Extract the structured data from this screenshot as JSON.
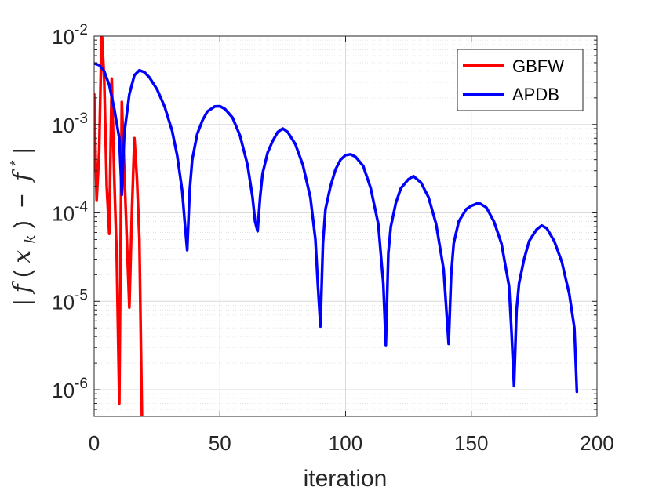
{
  "chart_data": {
    "type": "line",
    "xlabel": "iteration",
    "ylabel": "|f(x_k) − f*|",
    "ylabel_parts": [
      "|",
      "f",
      "(",
      "x",
      "k",
      ")",
      "−",
      "f",
      "*",
      "|"
    ],
    "xlim": [
      0,
      200
    ],
    "ylim": [
      5e-07,
      0.01
    ],
    "yscale": "log",
    "grid": true,
    "legend_position": "top-right",
    "x_ticks": [
      {
        "value": 0,
        "label": "0"
      },
      {
        "value": 50,
        "label": "50"
      },
      {
        "value": 100,
        "label": "100"
      },
      {
        "value": 150,
        "label": "150"
      },
      {
        "value": 200,
        "label": "200"
      }
    ],
    "y_ticks": [
      {
        "value": 1e-06,
        "base": "10",
        "exp": "-6"
      },
      {
        "value": 1e-05,
        "base": "10",
        "exp": "-5"
      },
      {
        "value": 0.0001,
        "base": "10",
        "exp": "-4"
      },
      {
        "value": 0.001,
        "base": "10",
        "exp": "-3"
      },
      {
        "value": 0.01,
        "base": "10",
        "exp": "-2"
      }
    ],
    "series": [
      {
        "name": "GBFW",
        "color": "#ff0000",
        "points": [
          [
            0,
            0.0022
          ],
          [
            1,
            0.00014
          ],
          [
            2,
            0.0005
          ],
          [
            3,
            0.0115
          ],
          [
            4,
            0.0032
          ],
          [
            5,
            0.0002
          ],
          [
            6,
            5.8e-05
          ],
          [
            7,
            0.0033
          ],
          [
            8,
            0.00025
          ],
          [
            9,
            3e-05
          ],
          [
            10,
            7e-07
          ],
          [
            11,
            0.0018
          ],
          [
            12,
            0.0003
          ],
          [
            13,
            5e-05
          ],
          [
            14,
            8.5e-06
          ],
          [
            15,
            0.0001
          ],
          [
            16,
            0.0007
          ],
          [
            17,
            0.00025
          ],
          [
            18,
            5e-05
          ],
          [
            19,
            5e-07
          ]
        ]
      },
      {
        "name": "APDB",
        "color": "#0000ff",
        "points": [
          [
            0,
            0.0049
          ],
          [
            2,
            0.0047
          ],
          [
            4,
            0.004
          ],
          [
            6,
            0.0028
          ],
          [
            8,
            0.0015
          ],
          [
            10,
            0.0007
          ],
          [
            11,
            0.00016
          ],
          [
            12,
            0.0008
          ],
          [
            14,
            0.0022
          ],
          [
            16,
            0.0036
          ],
          [
            18,
            0.0041
          ],
          [
            20,
            0.0039
          ],
          [
            22,
            0.0034
          ],
          [
            25,
            0.0025
          ],
          [
            28,
            0.0016
          ],
          [
            31,
            0.00085
          ],
          [
            33,
            0.00045
          ],
          [
            35,
            0.00018
          ],
          [
            36,
            8e-05
          ],
          [
            37,
            3.8e-05
          ],
          [
            38,
            0.00018
          ],
          [
            39,
            0.0004
          ],
          [
            41,
            0.00078
          ],
          [
            43,
            0.0011
          ],
          [
            45,
            0.0014
          ],
          [
            48,
            0.0016
          ],
          [
            50,
            0.00161
          ],
          [
            52,
            0.0015
          ],
          [
            55,
            0.0012
          ],
          [
            58,
            0.00075
          ],
          [
            61,
            0.00035
          ],
          [
            63,
            0.00015
          ],
          [
            64,
            8e-05
          ],
          [
            65,
            6.2e-05
          ],
          [
            66,
            0.00015
          ],
          [
            67,
            0.00028
          ],
          [
            69,
            0.00048
          ],
          [
            71,
            0.00065
          ],
          [
            73,
            0.00082
          ],
          [
            75,
            0.0009
          ],
          [
            77,
            0.00082
          ],
          [
            80,
            0.0006
          ],
          [
            83,
            0.00035
          ],
          [
            86,
            0.00015
          ],
          [
            88,
            5e-05
          ],
          [
            89,
            1.5e-05
          ],
          [
            90,
            5.2e-06
          ],
          [
            91,
            4.5e-05
          ],
          [
            92,
            0.00011
          ],
          [
            94,
            0.0002
          ],
          [
            96,
            0.00031
          ],
          [
            98,
            0.0004
          ],
          [
            100,
            0.00045
          ],
          [
            102,
            0.00046
          ],
          [
            104,
            0.00043
          ],
          [
            107,
            0.00034
          ],
          [
            110,
            0.00019
          ],
          [
            113,
            7.5e-05
          ],
          [
            115,
            1.6e-05
          ],
          [
            116,
            3.2e-06
          ],
          [
            117,
            3.5e-05
          ],
          [
            118,
            7e-05
          ],
          [
            120,
            0.00013
          ],
          [
            122,
            0.00019
          ],
          [
            125,
            0.00024
          ],
          [
            127,
            0.00026
          ],
          [
            130,
            0.00022
          ],
          [
            133,
            0.00015
          ],
          [
            136,
            7.5e-05
          ],
          [
            139,
            2.3e-05
          ],
          [
            141,
            3.3e-06
          ],
          [
            142,
            2e-05
          ],
          [
            143,
            4.5e-05
          ],
          [
            145,
            8e-05
          ],
          [
            148,
            0.00011
          ],
          [
            150,
            0.00012
          ],
          [
            153,
            0.00013
          ],
          [
            156,
            0.000115
          ],
          [
            159,
            8e-05
          ],
          [
            162,
            4.5e-05
          ],
          [
            165,
            1.5e-05
          ],
          [
            166,
            4.5e-06
          ],
          [
            167,
            1.1e-06
          ],
          [
            168,
            8e-06
          ],
          [
            169,
            1.6e-05
          ],
          [
            171,
            3e-05
          ],
          [
            173,
            4.8e-05
          ],
          [
            176,
            6.5e-05
          ],
          [
            178,
            7.2e-05
          ],
          [
            180,
            6.7e-05
          ],
          [
            183,
            4.8e-05
          ],
          [
            186,
            2.8e-05
          ],
          [
            189,
            1.2e-05
          ],
          [
            191,
            5e-06
          ],
          [
            192,
            9.5e-07
          ]
        ]
      }
    ]
  }
}
